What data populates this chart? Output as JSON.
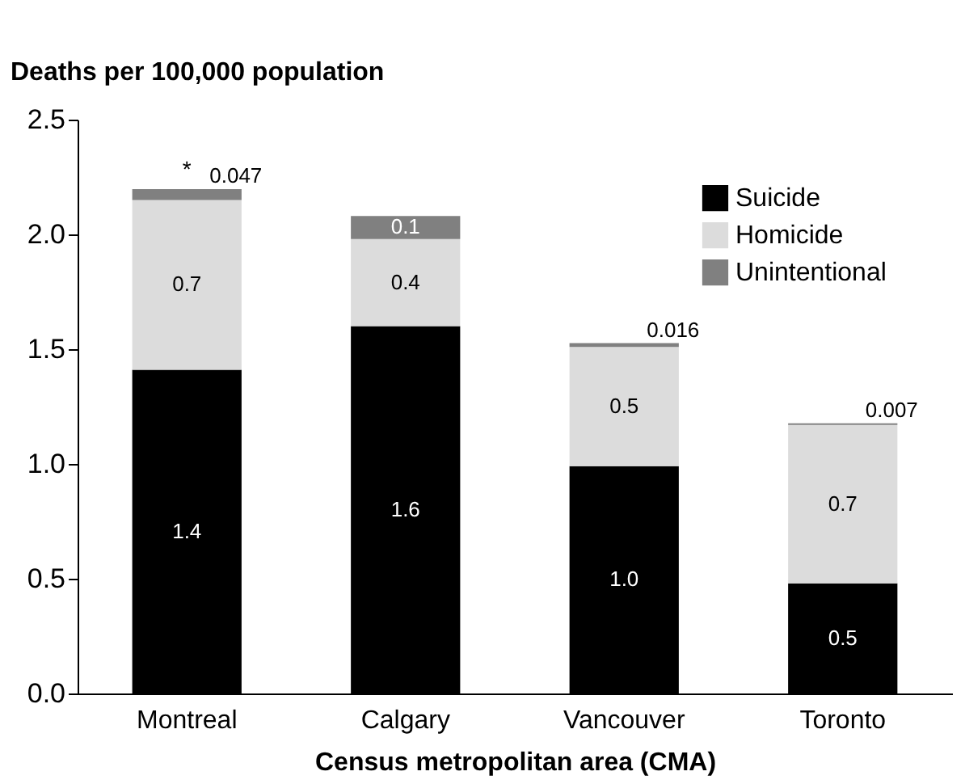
{
  "chart_data": {
    "type": "bar",
    "stacked": true,
    "ylabel": "Deaths per 100,000 population",
    "xlabel": "Census metropolitan area (CMA)",
    "categories": [
      "Montreal",
      "Calgary",
      "Vancouver",
      "Toronto"
    ],
    "series": [
      {
        "name": "Suicide",
        "color": "#000000",
        "values": [
          1.41,
          1.6,
          0.99,
          0.48
        ],
        "value_labels": [
          "1.4",
          "1.6",
          "1.0",
          "0.5"
        ]
      },
      {
        "name": "Homicide",
        "color": "#dcdcdc",
        "values": [
          0.74,
          0.38,
          0.52,
          0.69
        ],
        "value_labels": [
          "0.7",
          "0.4",
          "0.5",
          "0.7"
        ]
      },
      {
        "name": "Unintentional",
        "color": "#808080",
        "values": [
          0.047,
          0.1,
          0.016,
          0.007
        ],
        "value_labels": [
          "0.047",
          "0.1",
          "0.016",
          "0.007"
        ]
      }
    ],
    "ylim": [
      0,
      2.5
    ],
    "yticks": [
      {
        "value": 0,
        "label": "0.0"
      },
      0.5,
      {
        "value": 1,
        "label": "1.0"
      },
      1.5,
      {
        "value": 2,
        "label": "2.0"
      },
      2.5
    ],
    "annotations": [
      {
        "text": "*",
        "x": "Montreal",
        "y": 2.2
      }
    ],
    "grid": false,
    "legend": "top right"
  }
}
